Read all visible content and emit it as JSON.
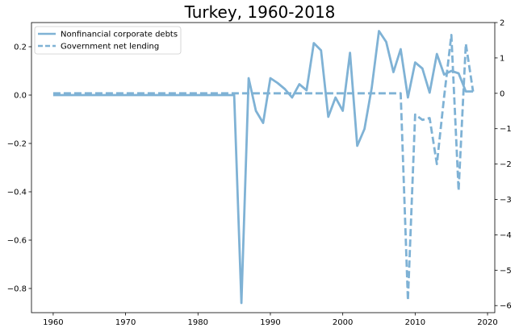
{
  "chart_data": {
    "type": "line",
    "title": "Turkey, 1960-2018",
    "xlabel": "",
    "ylabel": "",
    "xlim": [
      1957,
      2021
    ],
    "xticks": [
      1960,
      1970,
      1980,
      1990,
      2000,
      2010,
      2020
    ],
    "ylim": [
      -0.9,
      0.3
    ],
    "yticks": [
      0.2,
      0.0,
      -0.2,
      -0.4,
      -0.6,
      -0.8
    ],
    "y2lim": [
      -6.2,
      2.0
    ],
    "y2ticks": [
      2,
      1,
      0,
      -1,
      -2,
      -3,
      -4,
      -5,
      -6
    ],
    "grid": false,
    "legend_position": "top-left",
    "line_color": "#7fb2d5",
    "series": [
      {
        "name": "Nonfinancial corporate debts",
        "axis": "left",
        "style": "solid",
        "x": [
          1960,
          1961,
          1962,
          1963,
          1964,
          1965,
          1966,
          1967,
          1968,
          1969,
          1970,
          1971,
          1972,
          1973,
          1974,
          1975,
          1976,
          1977,
          1978,
          1979,
          1980,
          1981,
          1982,
          1983,
          1984,
          1985,
          1986,
          1987,
          1988,
          1989,
          1990,
          1991,
          1992,
          1993,
          1994,
          1995,
          1996,
          1997,
          1998,
          1999,
          2000,
          2001,
          2002,
          2003,
          2004,
          2005,
          2006,
          2007,
          2008,
          2009,
          2010,
          2011,
          2012,
          2013,
          2014,
          2015,
          2016,
          2017,
          2018
        ],
        "values": [
          0,
          0,
          0,
          0,
          0,
          0,
          0,
          0,
          0,
          0,
          0,
          0,
          0,
          0,
          0,
          0,
          0,
          0,
          0,
          0,
          0,
          0,
          0,
          0,
          0,
          0,
          -0.86,
          0.07,
          -0.065,
          -0.115,
          0.07,
          0.05,
          0.025,
          -0.01,
          0.045,
          0.02,
          0.215,
          0.185,
          -0.09,
          -0.01,
          -0.065,
          0.175,
          -0.21,
          -0.14,
          0.03,
          0.265,
          0.22,
          0.095,
          0.19,
          -0.01,
          0.135,
          0.11,
          0.01,
          0.17,
          0.085,
          0.1,
          0.09,
          0.015,
          0.015
        ]
      },
      {
        "name": "Government net lending",
        "axis": "right",
        "style": "dashed",
        "x": [
          1960,
          1961,
          1962,
          1963,
          1964,
          1965,
          1966,
          1967,
          1968,
          1969,
          1970,
          1971,
          1972,
          1973,
          1974,
          1975,
          1976,
          1977,
          1978,
          1979,
          1980,
          1981,
          1982,
          1983,
          1984,
          1985,
          1986,
          1987,
          1988,
          1989,
          1990,
          1991,
          1992,
          1993,
          1994,
          1995,
          1996,
          1997,
          1998,
          1999,
          2000,
          2001,
          2002,
          2003,
          2004,
          2005,
          2006,
          2007,
          2008,
          2009,
          2010,
          2011,
          2012,
          2013,
          2014,
          2015,
          2016,
          2017,
          2018
        ],
        "values": [
          0,
          0,
          0,
          0,
          0,
          0,
          0,
          0,
          0,
          0,
          0,
          0,
          0,
          0,
          0,
          0,
          0,
          0,
          0,
          0,
          0,
          0,
          0,
          0,
          0,
          0,
          0,
          0,
          0,
          0,
          0,
          0,
          0,
          0,
          0,
          0,
          0,
          0,
          0,
          0,
          0,
          0,
          0,
          0,
          0,
          0,
          0,
          0,
          0,
          -5.85,
          -0.6,
          -0.75,
          -0.7,
          -2.0,
          -0.1,
          1.65,
          -2.75,
          1.4,
          0.05
        ]
      }
    ]
  }
}
